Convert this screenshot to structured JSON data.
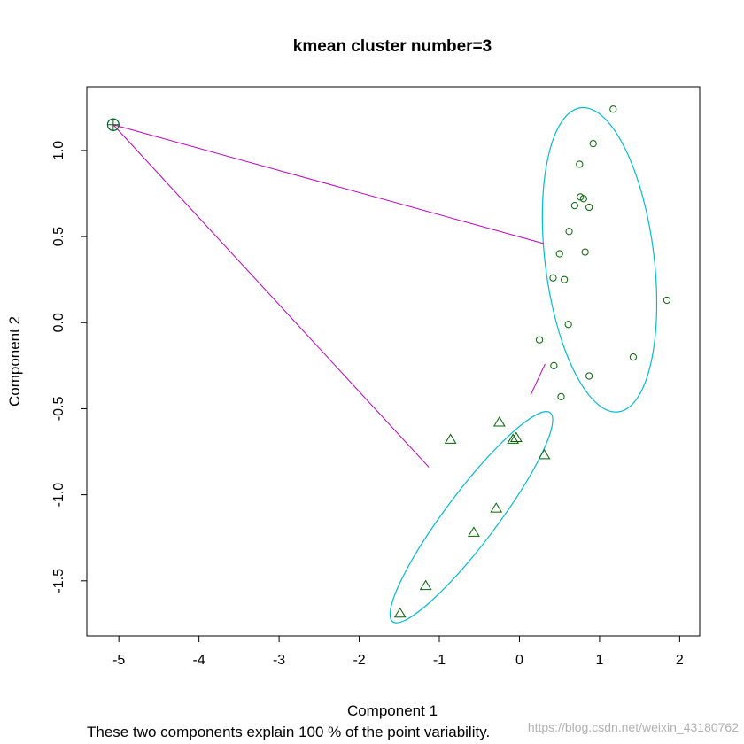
{
  "chart_data": {
    "type": "scatter",
    "title": "kmean cluster number=3",
    "xlabel": "Component 1",
    "ylabel": "Component 2",
    "subtitle": "These two components explain 100 % of the point variability.",
    "watermark": "https://blog.csdn.net/weixin_43180762",
    "xlim": [
      -5.4,
      2.25
    ],
    "ylim": [
      -1.82,
      1.37
    ],
    "xticks": [
      -5,
      -4,
      -3,
      -2,
      -1,
      0,
      1,
      2
    ],
    "yticks": [
      -1.5,
      -1.0,
      -0.5,
      0.0,
      0.5,
      1.0
    ],
    "ytick_labels": [
      "-1.5",
      "-1.0",
      "-0.5",
      "0.0",
      "0.5",
      "1.0"
    ],
    "grid": false,
    "colors": {
      "points": "#006400",
      "ellipse": "#00bcd4",
      "lines": "#c000c0",
      "axis": "#000000"
    },
    "series": [
      {
        "cluster": 1,
        "marker": "circle",
        "points": [
          [
            1.17,
            1.24
          ],
          [
            0.92,
            1.04
          ],
          [
            0.75,
            0.92
          ],
          [
            0.76,
            0.73
          ],
          [
            0.8,
            0.72
          ],
          [
            0.69,
            0.68
          ],
          [
            0.87,
            0.67
          ],
          [
            0.62,
            0.53
          ],
          [
            0.5,
            0.4
          ],
          [
            0.82,
            0.41
          ],
          [
            0.42,
            0.26
          ],
          [
            0.56,
            0.25
          ],
          [
            1.84,
            0.13
          ],
          [
            0.61,
            -0.01
          ],
          [
            0.25,
            -0.1
          ],
          [
            0.43,
            -0.25
          ],
          [
            1.42,
            -0.2
          ],
          [
            0.87,
            -0.31
          ],
          [
            0.52,
            -0.43
          ]
        ]
      },
      {
        "cluster": 2,
        "marker": "triangle",
        "points": [
          [
            -0.86,
            -0.68
          ],
          [
            -0.25,
            -0.58
          ],
          [
            -0.04,
            -0.67
          ],
          [
            -0.08,
            -0.68
          ],
          [
            0.31,
            -0.77
          ],
          [
            -0.29,
            -1.08
          ],
          [
            -0.57,
            -1.22
          ],
          [
            -1.17,
            -1.53
          ],
          [
            -1.49,
            -1.69
          ]
        ]
      },
      {
        "cluster": 3,
        "marker": "plus-circle",
        "points": [
          [
            -5.07,
            1.15
          ]
        ]
      }
    ],
    "ellipses": [
      {
        "cluster": 1,
        "center": [
          1.0,
          0.365
        ],
        "rx": 0.68,
        "ry": 0.89,
        "rotation_deg": -7
      },
      {
        "cluster": 2,
        "center": [
          -0.6,
          -1.13
        ],
        "rx": 0.32,
        "ry": 0.76,
        "rotation_deg": 37
      },
      {
        "cluster": 3,
        "center": [
          -5.07,
          1.15
        ],
        "rx": 0.07,
        "ry": 0.035,
        "rotation_deg": 0
      }
    ],
    "connecting_lines": [
      {
        "from": [
          -5.07,
          1.15
        ],
        "to": [
          0.3,
          0.46
        ]
      },
      {
        "from": [
          -5.07,
          1.15
        ],
        "to": [
          -1.13,
          -0.84
        ]
      },
      {
        "from": [
          0.14,
          -0.42
        ],
        "to": [
          0.32,
          -0.24
        ]
      }
    ]
  }
}
